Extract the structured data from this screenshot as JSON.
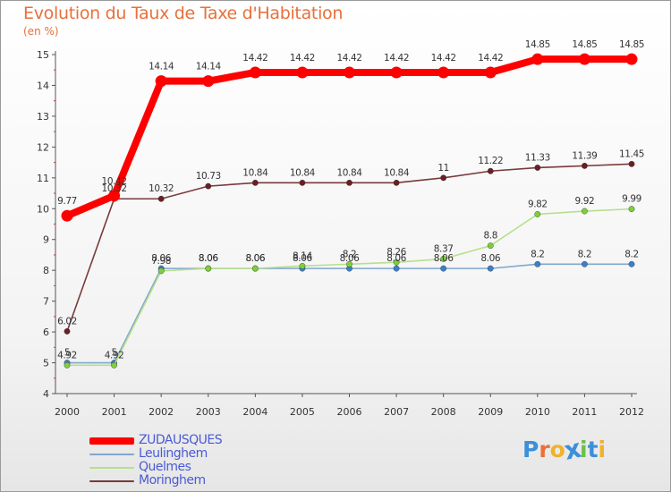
{
  "title": "Evolution du Taux de Taxe d'Habitation",
  "unit": "(en %)",
  "logo_text": "Proxiti",
  "logo_colors": [
    "#3d8fd8",
    "#e8703a",
    "#f0b22a",
    "#3d8fd8",
    "#6cc04a",
    "#3d8fd8",
    "#f0b22a"
  ],
  "chart_data": {
    "type": "line",
    "title": "Evolution du Taux de Taxe d'Habitation",
    "ylabel": "(en %)",
    "xlabel": "",
    "categories": [
      "2000",
      "2001",
      "2002",
      "2003",
      "2004",
      "2005",
      "2006",
      "2007",
      "2008",
      "2009",
      "2010",
      "2011",
      "2012"
    ],
    "yticks": [
      "4",
      "5",
      "6",
      "7",
      "8",
      "9",
      "10",
      "11",
      "12",
      "13",
      "14",
      "15"
    ],
    "ylim": [
      4,
      15
    ],
    "grid": false,
    "legend_position": "bottom-left",
    "series": [
      {
        "name": "ZUDAUSQUES",
        "color": "#ff0000",
        "values": [
          9.77,
          10.42,
          14.14,
          14.14,
          14.42,
          14.42,
          14.42,
          14.42,
          14.42,
          14.42,
          14.85,
          14.85,
          14.85
        ],
        "labels": [
          "9.77",
          "10.42",
          "14.14",
          "14.14",
          "14.42",
          "14.42",
          "14.42",
          "14.42",
          "14.42",
          "14.42",
          "14.85",
          "14.85",
          "14.85"
        ]
      },
      {
        "name": "Leulinghem",
        "color": "#7fa7cf",
        "marker": "#3d7fc9",
        "values": [
          5,
          5,
          8.06,
          8.06,
          8.06,
          8.06,
          8.06,
          8.06,
          8.06,
          8.06,
          8.2,
          8.2,
          8.2
        ],
        "labels": [
          "5",
          "5",
          "8.06",
          "8.06",
          "8.06",
          "8.06",
          "8.06",
          "8.06",
          "8.06",
          "8.06",
          "8.2",
          "8.2",
          "8.2"
        ]
      },
      {
        "name": "Quelmes",
        "color": "#b6e08a",
        "marker": "#7ecf3a",
        "values": [
          4.92,
          4.92,
          7.98,
          8.06,
          8.06,
          8.14,
          8.2,
          8.26,
          8.37,
          8.8,
          9.82,
          9.92,
          9.99
        ],
        "labels": [
          "4.92",
          "4.92",
          "7.98",
          "8.06",
          "8.06",
          "8.14",
          "8.2",
          "8.26",
          "8.37",
          "8.8",
          "9.82",
          "9.92",
          "9.99"
        ]
      },
      {
        "name": "Moringhem",
        "color": "#7a3a3a",
        "marker": "#6a1f24",
        "values": [
          6.02,
          10.32,
          10.32,
          10.73,
          10.84,
          10.84,
          10.84,
          10.84,
          11,
          11.22,
          11.33,
          11.39,
          11.45
        ],
        "labels": [
          "6.02",
          "10.32",
          "10.32",
          "10.73",
          "10.84",
          "10.84",
          "10.84",
          "10.84",
          "11",
          "11.22",
          "11.33",
          "11.39",
          "11.45"
        ]
      }
    ]
  }
}
